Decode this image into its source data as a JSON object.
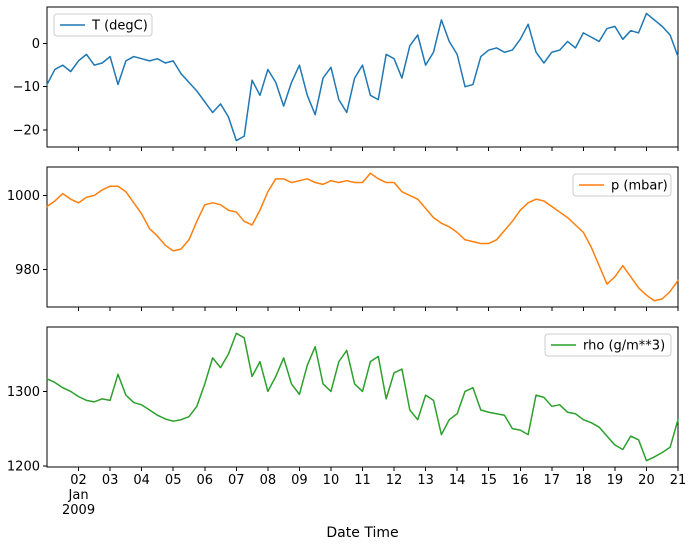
{
  "figure": {
    "background_color": "#ffffff",
    "xlabel": "Date Time",
    "xlim": [
      1,
      21
    ],
    "x_tick_values": [
      2,
      3,
      4,
      5,
      6,
      7,
      8,
      9,
      10,
      11,
      12,
      13,
      14,
      15,
      16,
      17,
      18,
      19,
      20,
      21
    ],
    "x_tick_labels": [
      "02",
      "03",
      "04",
      "05",
      "06",
      "07",
      "08",
      "09",
      "10",
      "11",
      "12",
      "13",
      "14",
      "15",
      "16",
      "17",
      "18",
      "19",
      "20",
      "21"
    ],
    "x_first_tick_extra": [
      "Jan",
      "2009"
    ],
    "x_days": [
      1,
      1.25,
      1.5,
      1.75,
      2,
      2.25,
      2.5,
      2.75,
      3,
      3.25,
      3.5,
      3.75,
      4,
      4.25,
      4.5,
      4.75,
      5,
      5.25,
      5.5,
      5.75,
      6,
      6.25,
      6.5,
      6.75,
      7,
      7.25,
      7.5,
      7.75,
      8,
      8.25,
      8.5,
      8.75,
      9,
      9.25,
      9.5,
      9.75,
      10,
      10.25,
      10.5,
      10.75,
      11,
      11.25,
      11.5,
      11.75,
      12,
      12.25,
      12.5,
      12.75,
      13,
      13.25,
      13.5,
      13.75,
      14,
      14.25,
      14.5,
      14.75,
      15,
      15.25,
      15.5,
      15.75,
      16,
      16.25,
      16.5,
      16.75,
      17,
      17.25,
      17.5,
      17.75,
      18,
      18.25,
      18.5,
      18.75,
      19,
      19.25,
      19.5,
      19.75,
      20,
      20.25,
      20.5,
      20.75,
      21
    ]
  },
  "chart_data": [
    {
      "type": "line",
      "id": "temperature",
      "name": "T (degC)",
      "color": "#1f77b4",
      "legend_position": "upper left",
      "grid": false,
      "ylim": [
        -24,
        8.5
      ],
      "ytick_values": [
        0,
        -10,
        -20
      ],
      "ytick_labels": [
        "0",
        "−10",
        "−20"
      ],
      "y": [
        -9.5,
        -6,
        -5,
        -6.5,
        -4,
        -2.5,
        -5,
        -4.5,
        -3,
        -9.5,
        -4,
        -3,
        -3.5,
        -4,
        -3.5,
        -4.5,
        -4,
        -7,
        -9,
        -11,
        -13.5,
        -16,
        -14,
        -17,
        -22.5,
        -21.5,
        -8.5,
        -12,
        -6,
        -9,
        -14.5,
        -9,
        -5,
        -12,
        -16.5,
        -8,
        -5.5,
        -13,
        -16,
        -8,
        -5,
        -12,
        -13,
        -2.5,
        -3.5,
        -8,
        -0.5,
        2,
        -5,
        -2,
        5.5,
        0.5,
        -2.5,
        -10,
        -9.5,
        -3,
        -1.5,
        -1,
        -2,
        -1.5,
        1,
        4.5,
        -2,
        -4.5,
        -2,
        -1.5,
        0.5,
        -1,
        2.5,
        1.5,
        0.5,
        3.5,
        4,
        1,
        3,
        2.5,
        7,
        5.5,
        4,
        2,
        -3
      ]
    },
    {
      "type": "line",
      "id": "pressure",
      "name": "p (mbar)",
      "color": "#ff7f0e",
      "legend_position": "upper right",
      "grid": false,
      "ylim": [
        969.8,
        1007.7
      ],
      "ytick_values": [
        1000,
        980
      ],
      "ytick_labels": [
        "1000",
        "980"
      ],
      "y": [
        997,
        998.5,
        1000.5,
        999,
        998,
        999.5,
        1000,
        1001.5,
        1002.5,
        1002.5,
        1001,
        998,
        995,
        991,
        989,
        986.5,
        985,
        985.5,
        988,
        993,
        997.5,
        998,
        997.5,
        996,
        995.5,
        993,
        992,
        996,
        1001,
        1004.5,
        1004.5,
        1003.5,
        1004,
        1004.5,
        1003.5,
        1003,
        1004,
        1003.5,
        1004,
        1003.5,
        1003.5,
        1006,
        1004.5,
        1003.5,
        1003.5,
        1001,
        1000,
        999,
        996.5,
        994,
        992.5,
        991.5,
        990,
        988,
        987.5,
        987,
        987,
        988,
        990.5,
        993,
        996,
        998,
        999,
        998.5,
        997,
        995.5,
        994,
        992,
        990,
        986,
        981,
        976,
        978,
        981,
        978,
        975,
        973,
        971.5,
        972,
        974,
        977
      ]
    },
    {
      "type": "line",
      "id": "density",
      "name": "rho (g/m**3)",
      "color": "#2ca02c",
      "legend_position": "upper right",
      "grid": false,
      "ylim": [
        1198.5,
        1386.5
      ],
      "ytick_values": [
        1300,
        1200
      ],
      "ytick_labels": [
        "1300",
        "1200"
      ],
      "y": [
        1317,
        1312,
        1305,
        1300,
        1293,
        1288,
        1286,
        1290,
        1288,
        1323,
        1295,
        1285,
        1282,
        1275,
        1268,
        1263,
        1260,
        1262,
        1266,
        1280,
        1310,
        1345,
        1332,
        1350,
        1378,
        1372,
        1320,
        1340,
        1300,
        1320,
        1345,
        1310,
        1296,
        1335,
        1360,
        1310,
        1300,
        1340,
        1355,
        1310,
        1300,
        1340,
        1347,
        1290,
        1325,
        1330,
        1275,
        1262,
        1295,
        1288,
        1242,
        1262,
        1270,
        1300,
        1305,
        1275,
        1272,
        1270,
        1268,
        1250,
        1248,
        1242,
        1295,
        1292,
        1280,
        1282,
        1272,
        1270,
        1262,
        1258,
        1252,
        1240,
        1228,
        1222,
        1240,
        1235,
        1207,
        1212,
        1218,
        1225,
        1262
      ]
    }
  ]
}
